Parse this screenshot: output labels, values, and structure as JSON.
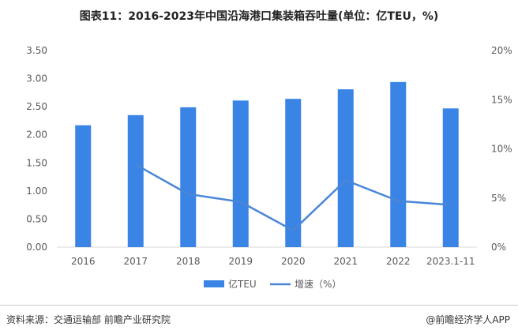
{
  "title": "图表11：2016-2023年中国沿海港口集装箱吞吐量(单位：亿TEU，%)",
  "source": "资料来源：交通运输部 前瞻产业研究院",
  "brand": "@前瞻经济学人APP",
  "colors": {
    "bar": "#3A84E5",
    "line": "#4A86D8"
  },
  "chart_data": {
    "type": "bar+line",
    "categories": [
      "2016",
      "2017",
      "2018",
      "2019",
      "2020",
      "2021",
      "2022",
      "2023.1-11"
    ],
    "series": [
      {
        "name": "亿TEU",
        "type": "bar",
        "axis": "left",
        "values": [
          2.17,
          2.35,
          2.49,
          2.61,
          2.64,
          2.81,
          2.94,
          2.47
        ]
      },
      {
        "name": "增速（%）",
        "type": "line",
        "axis": "right",
        "values": [
          null,
          8.4,
          5.4,
          4.6,
          1.7,
          6.8,
          4.7,
          4.3
        ]
      }
    ],
    "ylim_left": [
      0,
      3.5
    ],
    "yticks_left": [
      "0.00",
      "0.50",
      "1.00",
      "1.50",
      "2.00",
      "2.50",
      "3.00",
      "3.50"
    ],
    "ylim_right": [
      0,
      20
    ],
    "yticks_right": [
      "0%",
      "5%",
      "10%",
      "15%",
      "20%"
    ],
    "legend": "bottom",
    "grid": false
  }
}
